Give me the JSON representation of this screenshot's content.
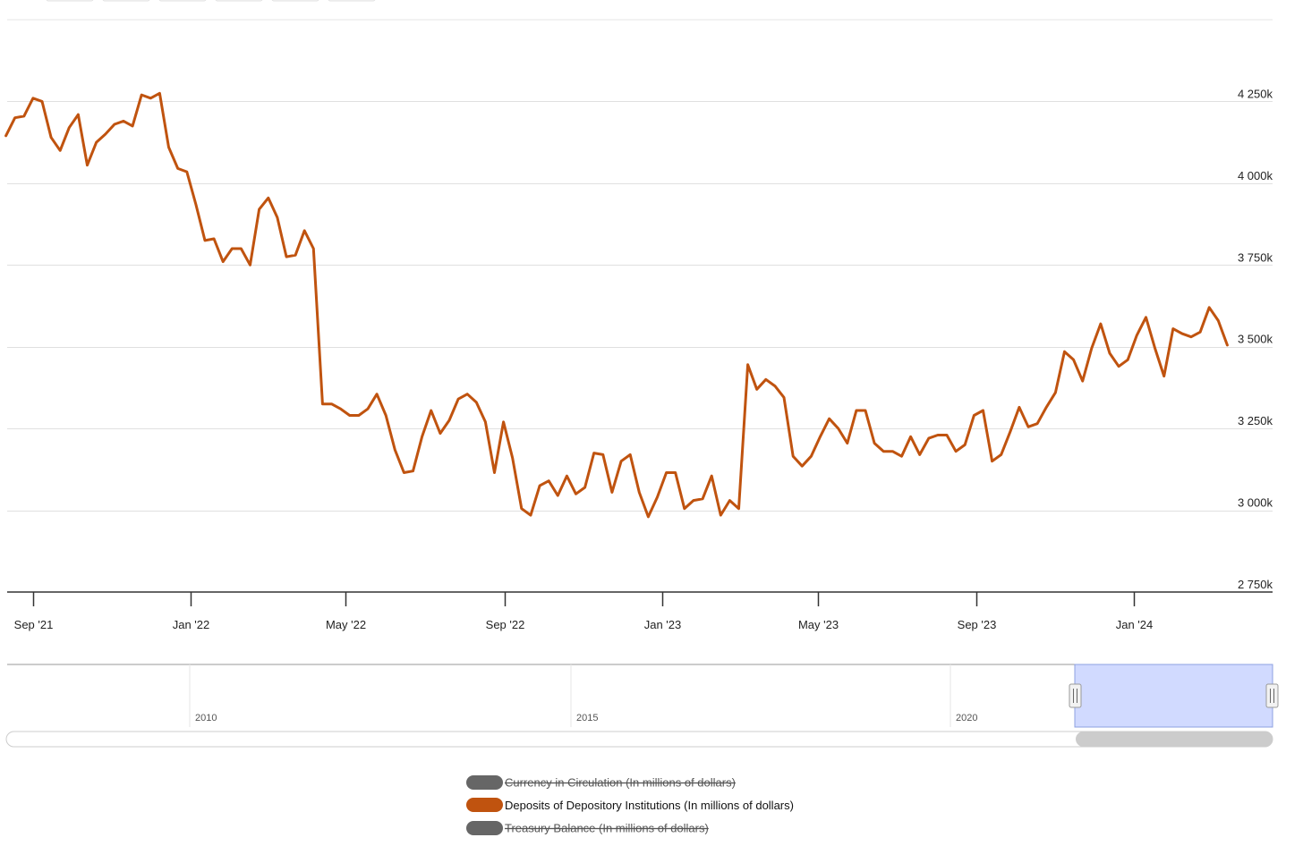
{
  "range_buttons": [
    "",
    "",
    "",
    "",
    "",
    ""
  ],
  "chart_data": {
    "type": "line",
    "title": "",
    "xlabel": "",
    "ylabel": "",
    "ylim": [
      2750,
      4500
    ],
    "y_unit_suffix": "k",
    "y_ticks": [
      2750,
      3000,
      3250,
      3500,
      3750,
      4000,
      4250
    ],
    "y_tick_labels": [
      "2 750k",
      "3 000k",
      "3 250k",
      "3 500k",
      "3 750k",
      "4 000k",
      "4 250k"
    ],
    "x_range": [
      "2021-08-12",
      "2024-04-17"
    ],
    "x_ticks": [
      "2021-09-01",
      "2022-01-01",
      "2022-05-01",
      "2022-09-01",
      "2023-01-01",
      "2023-05-01",
      "2023-09-01",
      "2024-01-01"
    ],
    "x_tick_labels": [
      "Sep '21",
      "Jan '22",
      "May '22",
      "Sep '22",
      "Jan '23",
      "May '23",
      "Sep '23",
      "Jan '24"
    ],
    "grid": true,
    "legend_placement": "bottom-center",
    "series": [
      {
        "name": "Deposits of Depository Institutions (In millions of dollars)",
        "color": "#c0530f",
        "visible": true,
        "points": [
          [
            "2021-08-11",
            4145
          ],
          [
            "2021-08-18",
            4200
          ],
          [
            "2021-08-25",
            4205
          ],
          [
            "2021-09-01",
            4260
          ],
          [
            "2021-09-08",
            4250
          ],
          [
            "2021-09-15",
            4140
          ],
          [
            "2021-09-22",
            4100
          ],
          [
            "2021-09-29",
            4170
          ],
          [
            "2021-10-06",
            4210
          ],
          [
            "2021-10-13",
            4055
          ],
          [
            "2021-10-20",
            4125
          ],
          [
            "2021-10-27",
            4150
          ],
          [
            "2021-11-03",
            4180
          ],
          [
            "2021-11-10",
            4190
          ],
          [
            "2021-11-17",
            4175
          ],
          [
            "2021-11-24",
            4270
          ],
          [
            "2021-12-01",
            4260
          ],
          [
            "2021-12-08",
            4275
          ],
          [
            "2021-12-15",
            4110
          ],
          [
            "2021-12-22",
            4045
          ],
          [
            "2021-12-29",
            4035
          ],
          [
            "2022-01-05",
            3935
          ],
          [
            "2022-01-12",
            3825
          ],
          [
            "2022-01-19",
            3830
          ],
          [
            "2022-01-26",
            3760
          ],
          [
            "2022-02-02",
            3800
          ],
          [
            "2022-02-09",
            3800
          ],
          [
            "2022-02-16",
            3750
          ],
          [
            "2022-02-23",
            3920
          ],
          [
            "2022-03-02",
            3955
          ],
          [
            "2022-03-09",
            3895
          ],
          [
            "2022-03-16",
            3775
          ],
          [
            "2022-03-23",
            3780
          ],
          [
            "2022-03-30",
            3855
          ],
          [
            "2022-04-06",
            3800
          ],
          [
            "2022-04-13",
            3325
          ],
          [
            "2022-04-20",
            3325
          ],
          [
            "2022-04-27",
            3310
          ],
          [
            "2022-05-04",
            3290
          ],
          [
            "2022-05-11",
            3290
          ],
          [
            "2022-05-18",
            3310
          ],
          [
            "2022-05-25",
            3355
          ],
          [
            "2022-06-01",
            3290
          ],
          [
            "2022-06-08",
            3185
          ],
          [
            "2022-06-15",
            3115
          ],
          [
            "2022-06-22",
            3120
          ],
          [
            "2022-06-29",
            3225
          ],
          [
            "2022-07-06",
            3305
          ],
          [
            "2022-07-13",
            3235
          ],
          [
            "2022-07-20",
            3275
          ],
          [
            "2022-07-27",
            3340
          ],
          [
            "2022-08-03",
            3355
          ],
          [
            "2022-08-10",
            3330
          ],
          [
            "2022-08-17",
            3270
          ],
          [
            "2022-08-24",
            3115
          ],
          [
            "2022-08-31",
            3270
          ],
          [
            "2022-09-07",
            3160
          ],
          [
            "2022-09-14",
            3005
          ],
          [
            "2022-09-21",
            2985
          ],
          [
            "2022-09-28",
            3075
          ],
          [
            "2022-10-05",
            3090
          ],
          [
            "2022-10-12",
            3045
          ],
          [
            "2022-10-19",
            3105
          ],
          [
            "2022-10-26",
            3050
          ],
          [
            "2022-11-02",
            3070
          ],
          [
            "2022-11-09",
            3175
          ],
          [
            "2022-11-16",
            3170
          ],
          [
            "2022-11-23",
            3055
          ],
          [
            "2022-11-30",
            3150
          ],
          [
            "2022-12-07",
            3170
          ],
          [
            "2022-12-14",
            3055
          ],
          [
            "2022-12-21",
            2980
          ],
          [
            "2022-12-28",
            3040
          ],
          [
            "2023-01-04",
            3115
          ],
          [
            "2023-01-11",
            3115
          ],
          [
            "2023-01-18",
            3005
          ],
          [
            "2023-01-25",
            3030
          ],
          [
            "2023-02-01",
            3035
          ],
          [
            "2023-02-08",
            3105
          ],
          [
            "2023-02-15",
            2985
          ],
          [
            "2023-02-22",
            3030
          ],
          [
            "2023-03-01",
            3005
          ],
          [
            "2023-03-08",
            3445
          ],
          [
            "2023-03-15",
            3370
          ],
          [
            "2023-03-22",
            3400
          ],
          [
            "2023-03-29",
            3380
          ],
          [
            "2023-04-05",
            3345
          ],
          [
            "2023-04-12",
            3165
          ],
          [
            "2023-04-19",
            3135
          ],
          [
            "2023-04-26",
            3165
          ],
          [
            "2023-05-03",
            3225
          ],
          [
            "2023-05-10",
            3280
          ],
          [
            "2023-05-17",
            3250
          ],
          [
            "2023-05-24",
            3205
          ],
          [
            "2023-05-31",
            3305
          ],
          [
            "2023-06-07",
            3305
          ],
          [
            "2023-06-14",
            3205
          ],
          [
            "2023-06-21",
            3180
          ],
          [
            "2023-06-28",
            3180
          ],
          [
            "2023-07-05",
            3165
          ],
          [
            "2023-07-12",
            3225
          ],
          [
            "2023-07-19",
            3170
          ],
          [
            "2023-07-26",
            3220
          ],
          [
            "2023-08-02",
            3230
          ],
          [
            "2023-08-09",
            3230
          ],
          [
            "2023-08-16",
            3180
          ],
          [
            "2023-08-23",
            3200
          ],
          [
            "2023-08-30",
            3290
          ],
          [
            "2023-09-06",
            3305
          ],
          [
            "2023-09-13",
            3150
          ],
          [
            "2023-09-20",
            3170
          ],
          [
            "2023-09-27",
            3240
          ],
          [
            "2023-10-04",
            3315
          ],
          [
            "2023-10-11",
            3255
          ],
          [
            "2023-10-18",
            3265
          ],
          [
            "2023-10-25",
            3315
          ],
          [
            "2023-11-01",
            3360
          ],
          [
            "2023-11-08",
            3485
          ],
          [
            "2023-11-15",
            3460
          ],
          [
            "2023-11-22",
            3395
          ],
          [
            "2023-11-29",
            3495
          ],
          [
            "2023-12-06",
            3570
          ],
          [
            "2023-12-13",
            3480
          ],
          [
            "2023-12-20",
            3440
          ],
          [
            "2023-12-27",
            3460
          ],
          [
            "2024-01-03",
            3535
          ],
          [
            "2024-01-10",
            3590
          ],
          [
            "2024-01-17",
            3495
          ],
          [
            "2024-01-24",
            3410
          ],
          [
            "2024-01-31",
            3555
          ],
          [
            "2024-02-07",
            3540
          ],
          [
            "2024-02-14",
            3530
          ],
          [
            "2024-02-21",
            3545
          ],
          [
            "2024-02-28",
            3620
          ],
          [
            "2024-03-06",
            3580
          ],
          [
            "2024-03-13",
            3505
          ]
        ]
      }
    ]
  },
  "navigator": {
    "year_labels": [
      "2010",
      "2015",
      "2020"
    ]
  },
  "legend": [
    {
      "name": "Currency in Circulation (In millions of dollars)",
      "color": "#666666",
      "visible": false
    },
    {
      "name": "Deposits of Depository Institutions (In millions of dollars)",
      "color": "#c0530f",
      "visible": true
    },
    {
      "name": "Treasury Balance (In millions of dollars)",
      "color": "#666666",
      "visible": false
    }
  ]
}
